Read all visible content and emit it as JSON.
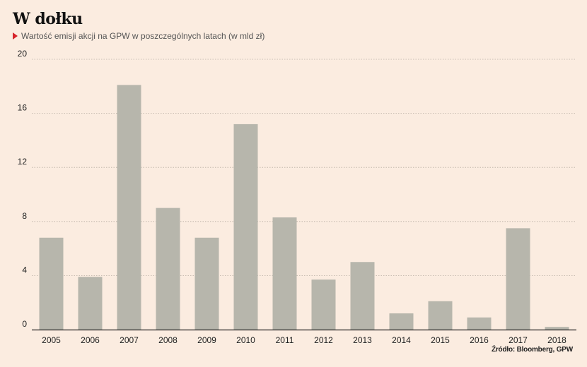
{
  "header": {
    "title": "W dołku",
    "subtitle": "Wartość emisji akcji na GPW w poszczególnych latach (w mld zł)"
  },
  "source": "Źródło: Bloomberg, GPW",
  "colors": {
    "bar": "#b7b6ac",
    "background": "#fbece0",
    "grid": "#b9aea4",
    "accent": "#d6232a"
  },
  "icons": {
    "subtitle_marker": "red-triangle-icon"
  },
  "chart_data": {
    "type": "bar",
    "title": "W dołku",
    "subtitle": "Wartość emisji akcji na GPW w poszczególnych latach (w mld zł)",
    "xlabel": "",
    "ylabel": "",
    "categories": [
      "2005",
      "2006",
      "2007",
      "2008",
      "2009",
      "2010",
      "2011",
      "2012",
      "2013",
      "2014",
      "2015",
      "2016",
      "2017",
      "2018"
    ],
    "values": [
      6.8,
      3.9,
      18.1,
      9.0,
      6.8,
      15.2,
      8.3,
      3.7,
      5.0,
      1.2,
      2.1,
      0.9,
      7.5,
      0.2
    ],
    "yticks": [
      "0",
      "4",
      "8",
      "12",
      "16",
      "20"
    ],
    "ylim": [
      0,
      20
    ],
    "grid": true
  }
}
